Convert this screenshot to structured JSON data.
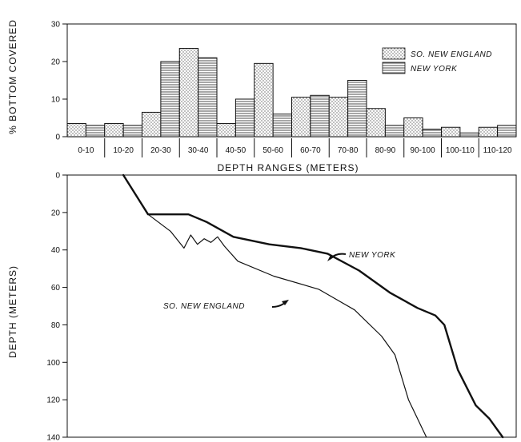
{
  "chart_data": [
    {
      "type": "bar",
      "title": "",
      "xlabel": "DEPTH RANGES (METERS)",
      "ylabel": "% BOTTOM COVERED",
      "ylim": [
        0,
        30
      ],
      "yticks": [
        0,
        10,
        20,
        30
      ],
      "categories": [
        "0-10",
        "10-20",
        "20-30",
        "30-40",
        "40-50",
        "50-60",
        "60-70",
        "70-80",
        "80-90",
        "90-100",
        "100-110",
        "110-120"
      ],
      "series": [
        {
          "name": "SO. NEW ENGLAND",
          "pattern": "dotted",
          "values": [
            3.5,
            3.5,
            6.5,
            23.5,
            3.5,
            19.5,
            10.5,
            10.5,
            7.5,
            5,
            2.5,
            2.5
          ]
        },
        {
          "name": "NEW YORK",
          "pattern": "horizontal-lines",
          "values": [
            3,
            3,
            20,
            21,
            10,
            6,
            11,
            15,
            3,
            2,
            1,
            3
          ]
        }
      ],
      "legend": "top-right",
      "grid": false
    },
    {
      "type": "line",
      "title": "",
      "xlabel": "",
      "ylabel": "DEPTH (METERS)",
      "ylim": [
        0,
        140
      ],
      "y_inverted": true,
      "yticks": [
        0,
        20,
        40,
        60,
        80,
        100,
        120,
        140
      ],
      "xlim": [
        0,
        100
      ],
      "x_axis_labeled": false,
      "series": [
        {
          "name": "NEW YORK",
          "label": "NEW YORK",
          "x": [
            12.5,
            18,
            27,
            31,
            37,
            45,
            52,
            58,
            65,
            72,
            78,
            82,
            84,
            87,
            91,
            94,
            97
          ],
          "y": [
            0,
            21,
            21,
            25,
            33,
            37,
            39,
            42,
            51,
            63,
            71,
            75,
            80,
            104,
            123,
            130,
            140
          ]
        },
        {
          "name": "SO. NEW ENGLAND",
          "label": "SO. NEW ENGLAND",
          "x": [
            12.5,
            18,
            23,
            26,
            27.5,
            29,
            30.5,
            32,
            33.5,
            35,
            38,
            46,
            56,
            64,
            70,
            73,
            76,
            80
          ],
          "y": [
            0,
            21,
            30,
            39,
            32,
            37,
            34,
            36,
            33,
            38,
            46,
            54,
            61,
            72,
            86,
            96,
            120,
            140
          ]
        }
      ],
      "grid": false
    }
  ]
}
